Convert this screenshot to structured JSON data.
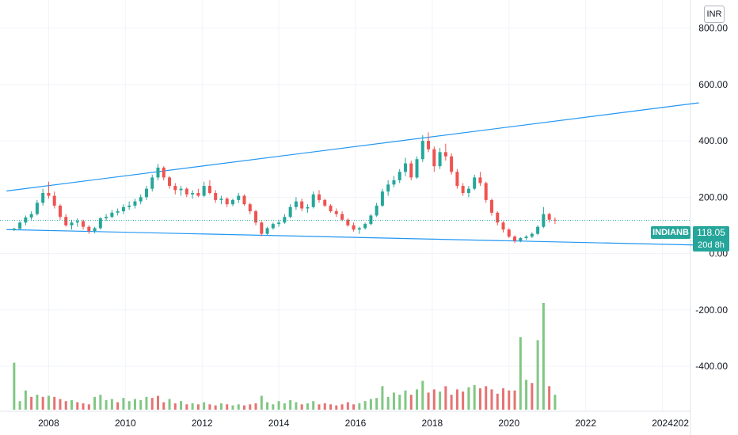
{
  "currency": "INR",
  "symbol": "INDIANB",
  "last_price": "118.05",
  "countdown": "20d 8h",
  "colors": {
    "up": "#26a69a",
    "down": "#ef5350",
    "trendline": "#2196f3",
    "up_volume": "#81c784",
    "down_volume": "#e57373",
    "grid": "#f0f3fa"
  },
  "chart_data": {
    "type": "candlestick",
    "grid": true,
    "y_tick_labels": [
      "800.00",
      "600.00",
      "400.00",
      "200.00",
      "0.00",
      "-200.00",
      "-400.00"
    ],
    "x_tick_labels": [
      "2008",
      "2010",
      "2012",
      "2014",
      "2016",
      "2018",
      "2020",
      "2022",
      "2024",
      "202"
    ],
    "price_ylim": [
      -560,
      900
    ],
    "x_range": [
      2007.0,
      2025.0
    ],
    "last_price": 118.05,
    "trendlines": [
      {
        "from": [
          2006.9,
          222
        ],
        "to": [
          2024.95,
          535
        ]
      },
      {
        "from": [
          2006.9,
          85
        ],
        "to": [
          2024.95,
          30
        ]
      }
    ],
    "candles": [
      [
        2007.1,
        83,
        92,
        80,
        88
      ],
      [
        2007.25,
        88,
        115,
        85,
        110
      ],
      [
        2007.4,
        110,
        135,
        100,
        128
      ],
      [
        2007.55,
        128,
        150,
        120,
        140
      ],
      [
        2007.7,
        140,
        190,
        135,
        180
      ],
      [
        2007.85,
        180,
        230,
        170,
        215
      ],
      [
        2008.0,
        215,
        255,
        195,
        205
      ],
      [
        2008.15,
        205,
        220,
        160,
        170
      ],
      [
        2008.3,
        170,
        175,
        120,
        130
      ],
      [
        2008.45,
        130,
        140,
        95,
        100
      ],
      [
        2008.6,
        100,
        120,
        85,
        110
      ],
      [
        2008.75,
        110,
        125,
        95,
        115
      ],
      [
        2008.9,
        115,
        120,
        85,
        95
      ],
      [
        2009.05,
        95,
        100,
        70,
        80
      ],
      [
        2009.2,
        80,
        95,
        72,
        90
      ],
      [
        2009.35,
        90,
        130,
        85,
        125
      ],
      [
        2009.5,
        125,
        140,
        115,
        130
      ],
      [
        2009.65,
        130,
        155,
        125,
        145
      ],
      [
        2009.8,
        145,
        160,
        135,
        150
      ],
      [
        2009.95,
        150,
        175,
        140,
        165
      ],
      [
        2010.1,
        165,
        185,
        155,
        170
      ],
      [
        2010.25,
        170,
        195,
        160,
        185
      ],
      [
        2010.4,
        185,
        210,
        175,
        200
      ],
      [
        2010.55,
        200,
        240,
        190,
        230
      ],
      [
        2010.7,
        230,
        280,
        220,
        270
      ],
      [
        2010.85,
        270,
        318,
        260,
        305
      ],
      [
        2011.0,
        305,
        310,
        260,
        270
      ],
      [
        2011.15,
        270,
        275,
        230,
        240
      ],
      [
        2011.3,
        240,
        250,
        210,
        225
      ],
      [
        2011.45,
        225,
        240,
        205,
        230
      ],
      [
        2011.6,
        230,
        235,
        200,
        210
      ],
      [
        2011.75,
        210,
        225,
        195,
        215
      ],
      [
        2011.9,
        215,
        230,
        200,
        205
      ],
      [
        2012.05,
        205,
        255,
        200,
        240
      ],
      [
        2012.2,
        240,
        260,
        210,
        215
      ],
      [
        2012.35,
        215,
        225,
        180,
        190
      ],
      [
        2012.5,
        190,
        205,
        175,
        195
      ],
      [
        2012.65,
        195,
        200,
        165,
        175
      ],
      [
        2012.8,
        175,
        195,
        168,
        190
      ],
      [
        2012.95,
        190,
        215,
        180,
        205
      ],
      [
        2013.1,
        205,
        210,
        170,
        175
      ],
      [
        2013.25,
        175,
        180,
        140,
        150
      ],
      [
        2013.4,
        150,
        155,
        100,
        110
      ],
      [
        2013.55,
        110,
        115,
        62,
        70
      ],
      [
        2013.7,
        70,
        95,
        65,
        90
      ],
      [
        2013.85,
        90,
        110,
        85,
        105
      ],
      [
        2014.0,
        105,
        120,
        95,
        110
      ],
      [
        2014.15,
        110,
        140,
        105,
        130
      ],
      [
        2014.3,
        130,
        175,
        125,
        165
      ],
      [
        2014.45,
        165,
        200,
        155,
        185
      ],
      [
        2014.6,
        185,
        195,
        150,
        160
      ],
      [
        2014.75,
        160,
        175,
        145,
        165
      ],
      [
        2014.9,
        165,
        220,
        160,
        210
      ],
      [
        2015.05,
        210,
        225,
        180,
        190
      ],
      [
        2015.2,
        190,
        195,
        165,
        170
      ],
      [
        2015.35,
        170,
        175,
        145,
        150
      ],
      [
        2015.5,
        150,
        160,
        130,
        140
      ],
      [
        2015.65,
        140,
        150,
        115,
        120
      ],
      [
        2015.8,
        120,
        125,
        95,
        100
      ],
      [
        2015.95,
        100,
        110,
        78,
        85
      ],
      [
        2016.1,
        85,
        95,
        70,
        90
      ],
      [
        2016.25,
        90,
        110,
        85,
        105
      ],
      [
        2016.4,
        105,
        140,
        100,
        135
      ],
      [
        2016.55,
        135,
        180,
        130,
        170
      ],
      [
        2016.7,
        170,
        230,
        165,
        220
      ],
      [
        2016.85,
        220,
        260,
        205,
        245
      ],
      [
        2017.0,
        245,
        275,
        235,
        260
      ],
      [
        2017.15,
        260,
        300,
        250,
        290
      ],
      [
        2017.3,
        290,
        340,
        275,
        320
      ],
      [
        2017.45,
        320,
        330,
        260,
        270
      ],
      [
        2017.6,
        270,
        345,
        265,
        335
      ],
      [
        2017.75,
        335,
        420,
        325,
        400
      ],
      [
        2017.9,
        400,
        430,
        360,
        370
      ],
      [
        2018.05,
        370,
        380,
        290,
        310
      ],
      [
        2018.2,
        310,
        375,
        300,
        360
      ],
      [
        2018.35,
        360,
        390,
        330,
        345
      ],
      [
        2018.5,
        345,
        355,
        280,
        290
      ],
      [
        2018.65,
        290,
        300,
        230,
        240
      ],
      [
        2018.8,
        240,
        250,
        205,
        215
      ],
      [
        2018.95,
        215,
        240,
        200,
        230
      ],
      [
        2019.1,
        230,
        280,
        225,
        270
      ],
      [
        2019.25,
        270,
        290,
        240,
        250
      ],
      [
        2019.4,
        250,
        255,
        180,
        190
      ],
      [
        2019.55,
        190,
        195,
        135,
        145
      ],
      [
        2019.7,
        145,
        150,
        100,
        110
      ],
      [
        2019.85,
        110,
        115,
        75,
        85
      ],
      [
        2020.0,
        85,
        90,
        55,
        60
      ],
      [
        2020.15,
        60,
        65,
        38,
        45
      ],
      [
        2020.3,
        45,
        58,
        40,
        55
      ],
      [
        2020.45,
        55,
        65,
        48,
        60
      ],
      [
        2020.6,
        60,
        75,
        55,
        70
      ],
      [
        2020.75,
        70,
        100,
        65,
        95
      ],
      [
        2020.9,
        95,
        165,
        90,
        140
      ],
      [
        2021.05,
        140,
        145,
        110,
        120
      ],
      [
        2021.2,
        120,
        128,
        105,
        118
      ]
    ],
    "volume": [
      [
        2007.1,
        0.44,
        1
      ],
      [
        2007.25,
        0.08,
        1
      ],
      [
        2007.4,
        0.18,
        1
      ],
      [
        2007.55,
        0.12,
        0
      ],
      [
        2007.7,
        0.14,
        1
      ],
      [
        2007.85,
        0.12,
        0
      ],
      [
        2008.0,
        0.13,
        1
      ],
      [
        2008.15,
        0.12,
        0
      ],
      [
        2008.3,
        0.1,
        0
      ],
      [
        2008.45,
        0.08,
        0
      ],
      [
        2008.6,
        0.09,
        1
      ],
      [
        2008.75,
        0.07,
        0
      ],
      [
        2008.9,
        0.06,
        0
      ],
      [
        2009.05,
        0.05,
        0
      ],
      [
        2009.2,
        0.12,
        1
      ],
      [
        2009.35,
        0.14,
        1
      ],
      [
        2009.5,
        0.09,
        1
      ],
      [
        2009.65,
        0.1,
        1
      ],
      [
        2009.8,
        0.07,
        0
      ],
      [
        2009.95,
        0.11,
        1
      ],
      [
        2010.1,
        0.08,
        1
      ],
      [
        2010.25,
        0.1,
        1
      ],
      [
        2010.4,
        0.09,
        1
      ],
      [
        2010.55,
        0.12,
        1
      ],
      [
        2010.7,
        0.11,
        0
      ],
      [
        2010.85,
        0.13,
        0
      ],
      [
        2011.0,
        0.07,
        0
      ],
      [
        2011.15,
        0.1,
        1
      ],
      [
        2011.3,
        0.06,
        0
      ],
      [
        2011.45,
        0.08,
        1
      ],
      [
        2011.6,
        0.05,
        0
      ],
      [
        2011.75,
        0.06,
        1
      ],
      [
        2011.9,
        0.05,
        0
      ],
      [
        2012.05,
        0.07,
        1
      ],
      [
        2012.2,
        0.05,
        0
      ],
      [
        2012.35,
        0.04,
        0
      ],
      [
        2012.5,
        0.06,
        1
      ],
      [
        2012.65,
        0.05,
        0
      ],
      [
        2012.8,
        0.04,
        1
      ],
      [
        2012.95,
        0.05,
        1
      ],
      [
        2013.1,
        0.04,
        0
      ],
      [
        2013.25,
        0.05,
        0
      ],
      [
        2013.4,
        0.06,
        0
      ],
      [
        2013.55,
        0.13,
        1
      ],
      [
        2013.7,
        0.07,
        1
      ],
      [
        2013.85,
        0.05,
        1
      ],
      [
        2014.0,
        0.08,
        1
      ],
      [
        2014.15,
        0.06,
        1
      ],
      [
        2014.3,
        0.09,
        1
      ],
      [
        2014.45,
        0.07,
        1
      ],
      [
        2014.6,
        0.05,
        0
      ],
      [
        2014.75,
        0.06,
        1
      ],
      [
        2014.9,
        0.08,
        1
      ],
      [
        2015.05,
        0.05,
        0
      ],
      [
        2015.2,
        0.06,
        0
      ],
      [
        2015.35,
        0.05,
        0
      ],
      [
        2015.5,
        0.04,
        0
      ],
      [
        2015.65,
        0.05,
        0
      ],
      [
        2015.8,
        0.07,
        0
      ],
      [
        2015.95,
        0.05,
        0
      ],
      [
        2016.1,
        0.06,
        1
      ],
      [
        2016.25,
        0.08,
        1
      ],
      [
        2016.4,
        0.1,
        1
      ],
      [
        2016.55,
        0.11,
        1
      ],
      [
        2016.7,
        0.22,
        1
      ],
      [
        2016.85,
        0.12,
        1
      ],
      [
        2017.0,
        0.16,
        1
      ],
      [
        2017.15,
        0.14,
        1
      ],
      [
        2017.3,
        0.18,
        1
      ],
      [
        2017.45,
        0.14,
        0
      ],
      [
        2017.6,
        0.19,
        1
      ],
      [
        2017.75,
        0.27,
        1
      ],
      [
        2017.9,
        0.16,
        0
      ],
      [
        2018.05,
        0.19,
        0
      ],
      [
        2018.2,
        0.17,
        1
      ],
      [
        2018.35,
        0.22,
        0
      ],
      [
        2018.5,
        0.14,
        0
      ],
      [
        2018.65,
        0.19,
        0
      ],
      [
        2018.8,
        0.17,
        0
      ],
      [
        2018.95,
        0.21,
        1
      ],
      [
        2019.1,
        0.23,
        1
      ],
      [
        2019.25,
        0.2,
        0
      ],
      [
        2019.4,
        0.22,
        0
      ],
      [
        2019.55,
        0.19,
        0
      ],
      [
        2019.7,
        0.15,
        0
      ],
      [
        2019.85,
        0.2,
        0
      ],
      [
        2020.0,
        0.18,
        0
      ],
      [
        2020.15,
        0.18,
        0
      ],
      [
        2020.3,
        0.68,
        1
      ],
      [
        2020.45,
        0.28,
        1
      ],
      [
        2020.6,
        0.25,
        0
      ],
      [
        2020.75,
        0.65,
        1
      ],
      [
        2020.9,
        1.0,
        1
      ],
      [
        2021.05,
        0.22,
        0
      ],
      [
        2021.2,
        0.14,
        1
      ]
    ]
  }
}
